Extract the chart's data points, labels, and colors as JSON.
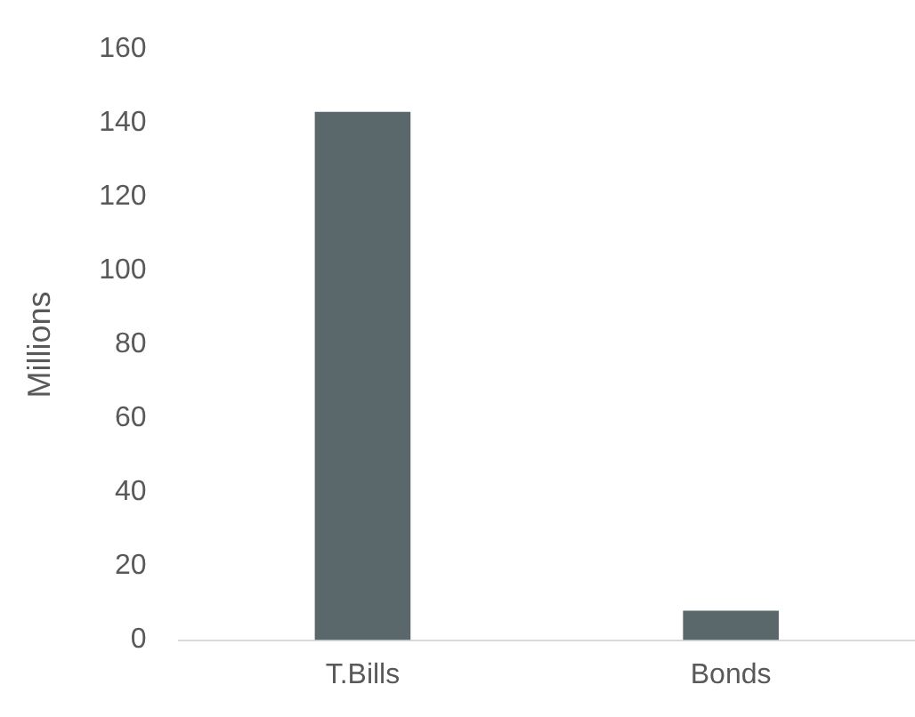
{
  "chart_data": {
    "type": "bar",
    "ylabel": "Millions",
    "categories": [
      "T.Bills",
      "Bonds"
    ],
    "values": [
      143,
      8
    ],
    "color": "#5a686c",
    "ylim": [
      0,
      160
    ],
    "yticks": [
      0,
      20,
      40,
      60,
      80,
      100,
      120,
      140,
      160
    ],
    "grid": false,
    "legend": false
  }
}
